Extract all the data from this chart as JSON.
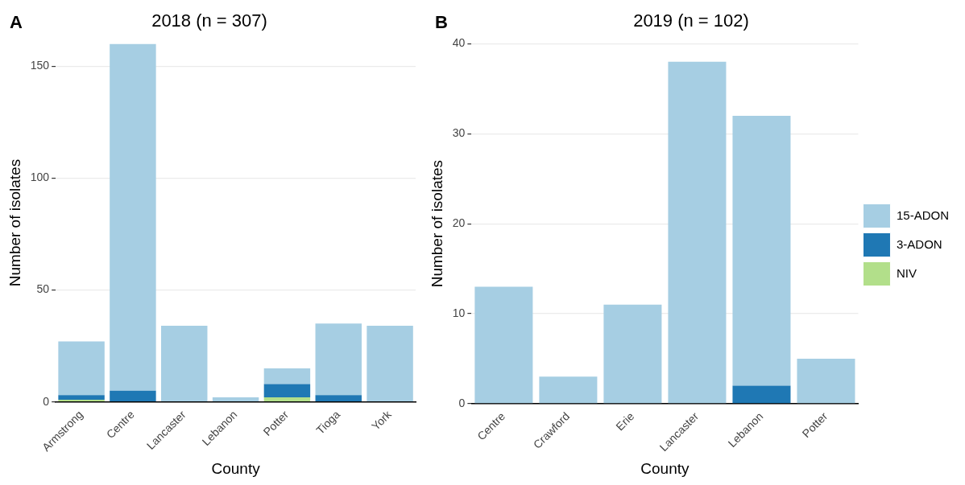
{
  "chart_data": [
    {
      "type": "bar",
      "title": "2018 (n = 307)",
      "xlabel": "County",
      "ylabel": "Number of isolates",
      "annotations": [
        "A"
      ],
      "stacked": true,
      "grid": "y",
      "legend": false,
      "categories": [
        "Armstrong",
        "Centre",
        "Lancaster",
        "Lebanon",
        "Potter",
        "Tioga",
        "York"
      ],
      "ylim": [
        0,
        160
      ],
      "yticks": [
        0,
        50,
        100,
        150
      ],
      "series": [
        {
          "color": "#b2df8a",
          "values": [
            1,
            0,
            0,
            0,
            2,
            0,
            0
          ]
        },
        {
          "color": "#1f78b4",
          "values": [
            2,
            5,
            0,
            0,
            6,
            3,
            0
          ]
        },
        {
          "color": "#a6cee3",
          "values": [
            24,
            155,
            34,
            2,
            7,
            32,
            34
          ]
        }
      ]
    },
    {
      "type": "bar",
      "title": "2019 (n = 102)",
      "xlabel": "County",
      "ylabel": "Number of isolates",
      "annotations": [
        "B"
      ],
      "stacked": true,
      "grid": "y",
      "legend": "right",
      "categories": [
        "Centre",
        "Crawford",
        "Erie",
        "Lancaster",
        "Lebanon",
        "Potter"
      ],
      "ylim": [
        0,
        40
      ],
      "yticks": [
        0,
        10,
        20,
        30,
        40
      ],
      "series": [
        {
          "name": "NIV",
          "color": "#b2df8a",
          "values": [
            0,
            0,
            0,
            0,
            0,
            0
          ]
        },
        {
          "name": "3-ADON",
          "color": "#1f78b4",
          "values": [
            0,
            0,
            0,
            0,
            2,
            0
          ]
        },
        {
          "name": "15-ADON",
          "color": "#a6cee3",
          "values": [
            13,
            3,
            11,
            38,
            30,
            5
          ]
        }
      ]
    }
  ]
}
